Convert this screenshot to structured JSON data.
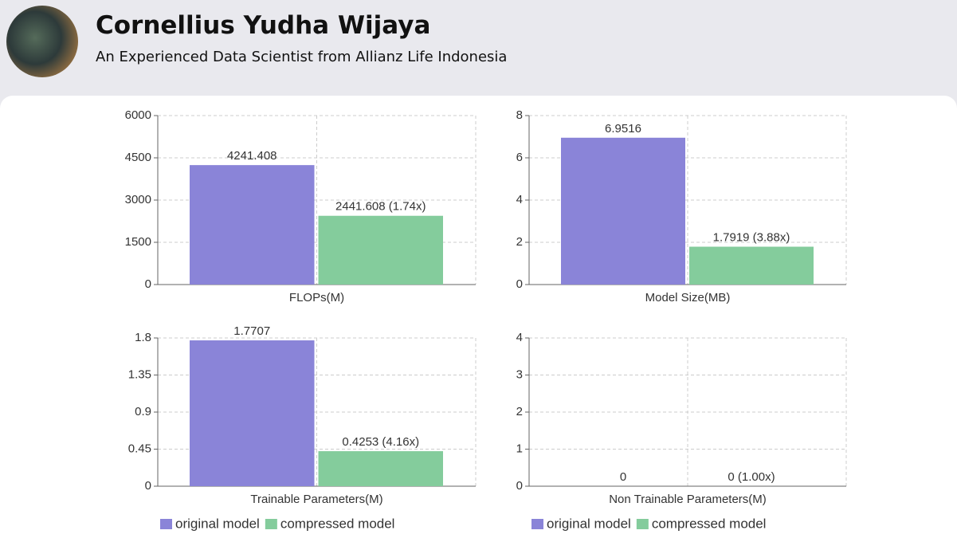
{
  "header": {
    "name": "Cornellius Yudha Wijaya",
    "subtitle": "An Experienced Data Scientist from Allianz Life Indonesia"
  },
  "chart_data": [
    {
      "type": "bar",
      "categories": [
        "FLOPs(M)"
      ],
      "ylim": [
        0,
        6000
      ],
      "yticks": [
        0,
        1500,
        3000,
        4500,
        6000
      ],
      "grid": true,
      "series": [
        {
          "name": "original model",
          "color": "#8a84d8",
          "values": [
            4241.408
          ]
        },
        {
          "name": "compressed model",
          "color": "#84cc9c",
          "values": [
            2441.608
          ],
          "value_labels": [
            "2441.608 (1.74x)"
          ]
        }
      ]
    },
    {
      "type": "bar",
      "categories": [
        "Model Size(MB)"
      ],
      "ylim": [
        0,
        8
      ],
      "yticks": [
        0,
        2,
        4,
        6,
        8
      ],
      "grid": true,
      "series": [
        {
          "name": "original model",
          "color": "#8a84d8",
          "values": [
            6.9516
          ]
        },
        {
          "name": "compressed model",
          "color": "#84cc9c",
          "values": [
            1.7919
          ],
          "value_labels": [
            "1.7919 (3.88x)"
          ]
        }
      ]
    },
    {
      "type": "bar",
      "categories": [
        "Trainable Parameters(M)"
      ],
      "ylim": [
        0,
        1.8
      ],
      "yticks": [
        0,
        0.45,
        0.9,
        1.35,
        1.8
      ],
      "grid": true,
      "legend": true,
      "series": [
        {
          "name": "original model",
          "color": "#8a84d8",
          "values": [
            1.7707
          ]
        },
        {
          "name": "compressed model",
          "color": "#84cc9c",
          "values": [
            0.4253
          ],
          "value_labels": [
            "0.4253 (4.16x)"
          ]
        }
      ]
    },
    {
      "type": "bar",
      "categories": [
        "Non Trainable Parameters(M)"
      ],
      "ylim": [
        0,
        4
      ],
      "yticks": [
        0,
        1,
        2,
        3,
        4
      ],
      "grid": true,
      "legend": true,
      "series": [
        {
          "name": "original model",
          "color": "#8a84d8",
          "values": [
            0
          ]
        },
        {
          "name": "compressed model",
          "color": "#84cc9c",
          "values": [
            0
          ],
          "value_labels": [
            "0 (1.00x)"
          ]
        }
      ]
    }
  ]
}
